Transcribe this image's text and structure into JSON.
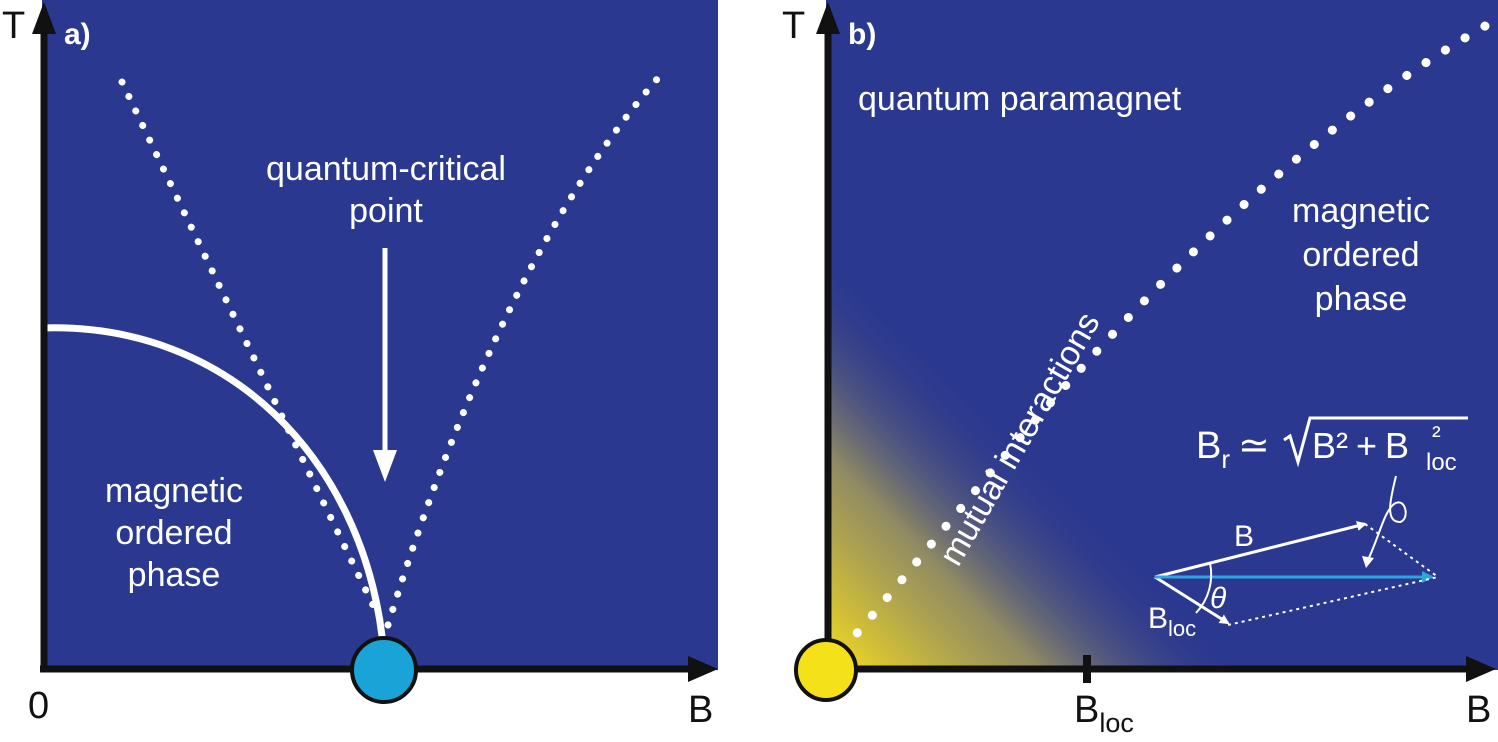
{
  "colors": {
    "panel_bg": "#2b388f",
    "axis": "#111111",
    "qcp_dot": "#1aa3d6",
    "origin_dot": "#f5e11a",
    "glow": "#f5dc1e",
    "vector_blue": "#2aa6e0",
    "white": "#ffffff"
  },
  "panel_a": {
    "tag": "a)",
    "axis_y": "T",
    "axis_x": "B",
    "origin": "0",
    "qcp_label": [
      "quantum-critical",
      "point"
    ],
    "phase_label": [
      "magnetic",
      "ordered",
      "phase"
    ],
    "icons": [
      "arrow-down-icon",
      "qcp-circle-icon"
    ]
  },
  "panel_b": {
    "tag": "b)",
    "axis_y": "T",
    "axis_x": "B",
    "tick_label": "B",
    "tick_sub": "loc",
    "paramagnet_label": "quantum paramagnet",
    "phase_label": [
      "magnetic",
      "ordered",
      "phase"
    ],
    "interactions_label": "mutual interactions",
    "formula": {
      "lhs": "B",
      "lhs_sub": "r",
      "approx": "≃",
      "term1": "B²",
      "plus": "+",
      "term2": "B",
      "term2_sub": "loc",
      "term2_sup": "²"
    },
    "vector_B": "B",
    "vector_Bloc": "B",
    "vector_Bloc_sub": "loc",
    "angle": "θ"
  }
}
